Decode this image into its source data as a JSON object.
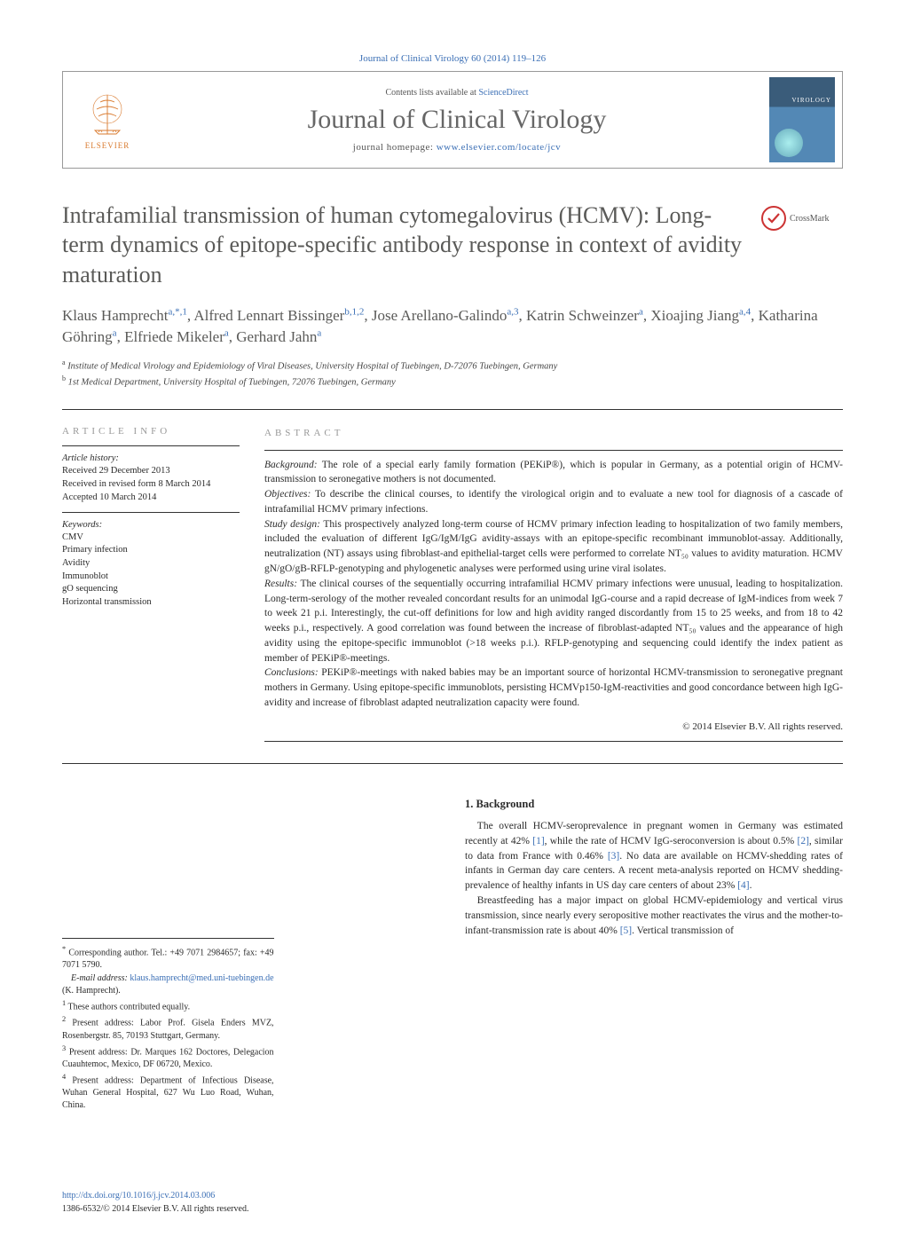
{
  "journal_ref": "Journal of Clinical Virology 60 (2014) 119–126",
  "header": {
    "contents_prefix": "Contents lists available at ",
    "contents_link": "ScienceDirect",
    "journal_name": "Journal of Clinical Virology",
    "homepage_prefix": "journal homepage: ",
    "homepage_link": "www.elsevier.com/locate/jcv",
    "publisher": "ELSEVIER"
  },
  "crossmark_label": "CrossMark",
  "title": "Intrafamilial transmission of human cytomegalovirus (HCMV): Long-term dynamics of epitope-specific antibody response in context of avidity maturation",
  "authors_html": "Klaus Hamprecht<sup>a,*,1</sup>, Alfred Lennart Bissinger<sup>b,1,2</sup>, Jose Arellano-Galindo<sup>a,3</sup>, Katrin Schweinzer<sup>a</sup>, Xioajing Jiang<sup>a,4</sup>, Katharina Göhring<sup>a</sup>, Elfriede Mikeler<sup>a</sup>, Gerhard Jahn<sup>a</sup>",
  "affiliations": {
    "a": "Institute of Medical Virology and Epidemiology of Viral Diseases, University Hospital of Tuebingen, D-72076 Tuebingen, Germany",
    "b": "1st Medical Department, University Hospital of Tuebingen, 72076 Tuebingen, Germany"
  },
  "article_info_label": "article info",
  "abstract_label": "abstract",
  "history": {
    "heading": "Article history:",
    "received": "Received 29 December 2013",
    "revised": "Received in revised form 8 March 2014",
    "accepted": "Accepted 10 March 2014"
  },
  "keywords": {
    "heading": "Keywords:",
    "items": [
      "CMV",
      "Primary infection",
      "Avidity",
      "Immunoblot",
      "gO sequencing",
      "Horizontal transmission"
    ]
  },
  "abstract": {
    "background_label": "Background:",
    "background": " The role of a special early family formation (PEKiP®), which is popular in Germany, as a potential origin of HCMV-transmission to seronegative mothers is not documented.",
    "objectives_label": "Objectives:",
    "objectives": " To describe the clinical courses, to identify the virological origin and to evaluate a new tool for diagnosis of a cascade of intrafamilial HCMV primary infections.",
    "study_label": "Study design:",
    "study": " This prospectively analyzed long-term course of HCMV primary infection leading to hospitalization of two family members, included the evaluation of different IgG/IgM/IgG avidity-assays with an epitope-specific recombinant immunoblot-assay. Additionally, neutralization (NT) assays using fibroblast-and epithelial-target cells were performed to correlate NT₅₀ values to avidity maturation. HCMV gN/gO/gB-RFLP-genotyping and phylogenetic analyses were performed using urine viral isolates.",
    "results_label": "Results:",
    "results": " The clinical courses of the sequentially occurring intrafamilial HCMV primary infections were unusual, leading to hospitalization. Long-term-serology of the mother revealed concordant results for an unimodal IgG-course and a rapid decrease of IgM-indices from week 7 to week 21 p.i. Interestingly, the cut-off definitions for low and high avidity ranged discordantly from 15 to 25 weeks, and from 18 to 42 weeks p.i., respectively. A good correlation was found between the increase of fibroblast-adapted NT₅₀ values and the appearance of high avidity using the epitope-specific immunoblot (>18 weeks p.i.). RFLP-genotyping and sequencing could identify the index patient as member of PEKiP®-meetings.",
    "conclusions_label": "Conclusions:",
    "conclusions": " PEKiP®-meetings with naked babies may be an important source of horizontal HCMV-transmission to seronegative pregnant mothers in Germany. Using epitope-specific immunoblots, persisting HCMVp150-IgM-reactivities and good concordance between high IgG-avidity and increase of fibroblast adapted neutralization capacity were found.",
    "copyright": "© 2014 Elsevier B.V. All rights reserved."
  },
  "footnotes": {
    "corr": "Corresponding author. Tel.: +49 7071 2984657; fax: +49 7071 5790.",
    "email_label": "E-mail address: ",
    "email": "klaus.hamprecht@med.uni-tuebingen.de",
    "email_suffix": " (K. Hamprecht).",
    "n1": "These authors contributed equally.",
    "n2": "Present address: Labor Prof. Gisela Enders MVZ, Rosenbergstr. 85, 70193 Stuttgart, Germany.",
    "n3": "Present address: Dr. Marques 162 Doctores, Delegacion Cuauhtemoc, Mexico, DF 06720, Mexico.",
    "n4": "Present address: Department of Infectious Disease, Wuhan General Hospital, 627 Wu Luo Road, Wuhan, China."
  },
  "doi": {
    "link": "http://dx.doi.org/10.1016/j.jcv.2014.03.006",
    "issn_line": "1386-6532/© 2014 Elsevier B.V. All rights reserved."
  },
  "body": {
    "heading": "1. Background",
    "p1_a": "The overall HCMV-seroprevalence in pregnant women in Germany was estimated recently at 42% ",
    "ref1": "[1]",
    "p1_b": ", while the rate of HCMV IgG-seroconversion is about 0.5% ",
    "ref2": "[2]",
    "p1_c": ", similar to data from France with 0.46% ",
    "ref3": "[3]",
    "p1_d": ". No data are available on HCMV-shedding rates of infants in German day care centers. A recent meta-analysis reported on HCMV shedding-prevalence of healthy infants in US day care centers of about 23% ",
    "ref4": "[4]",
    "p1_e": ".",
    "p2_a": "Breastfeeding has a major impact on global HCMV-epidemiology and vertical virus transmission, since nearly every seropositive mother reactivates the virus and the mother-to-infant-transmission rate is about 40% ",
    "ref5": "[5]",
    "p2_b": ". Vertical transmission of"
  },
  "colors": {
    "link": "#3b6fb5",
    "title_gray": "#5a5a58",
    "elsevier_orange": "#d97a2e"
  }
}
